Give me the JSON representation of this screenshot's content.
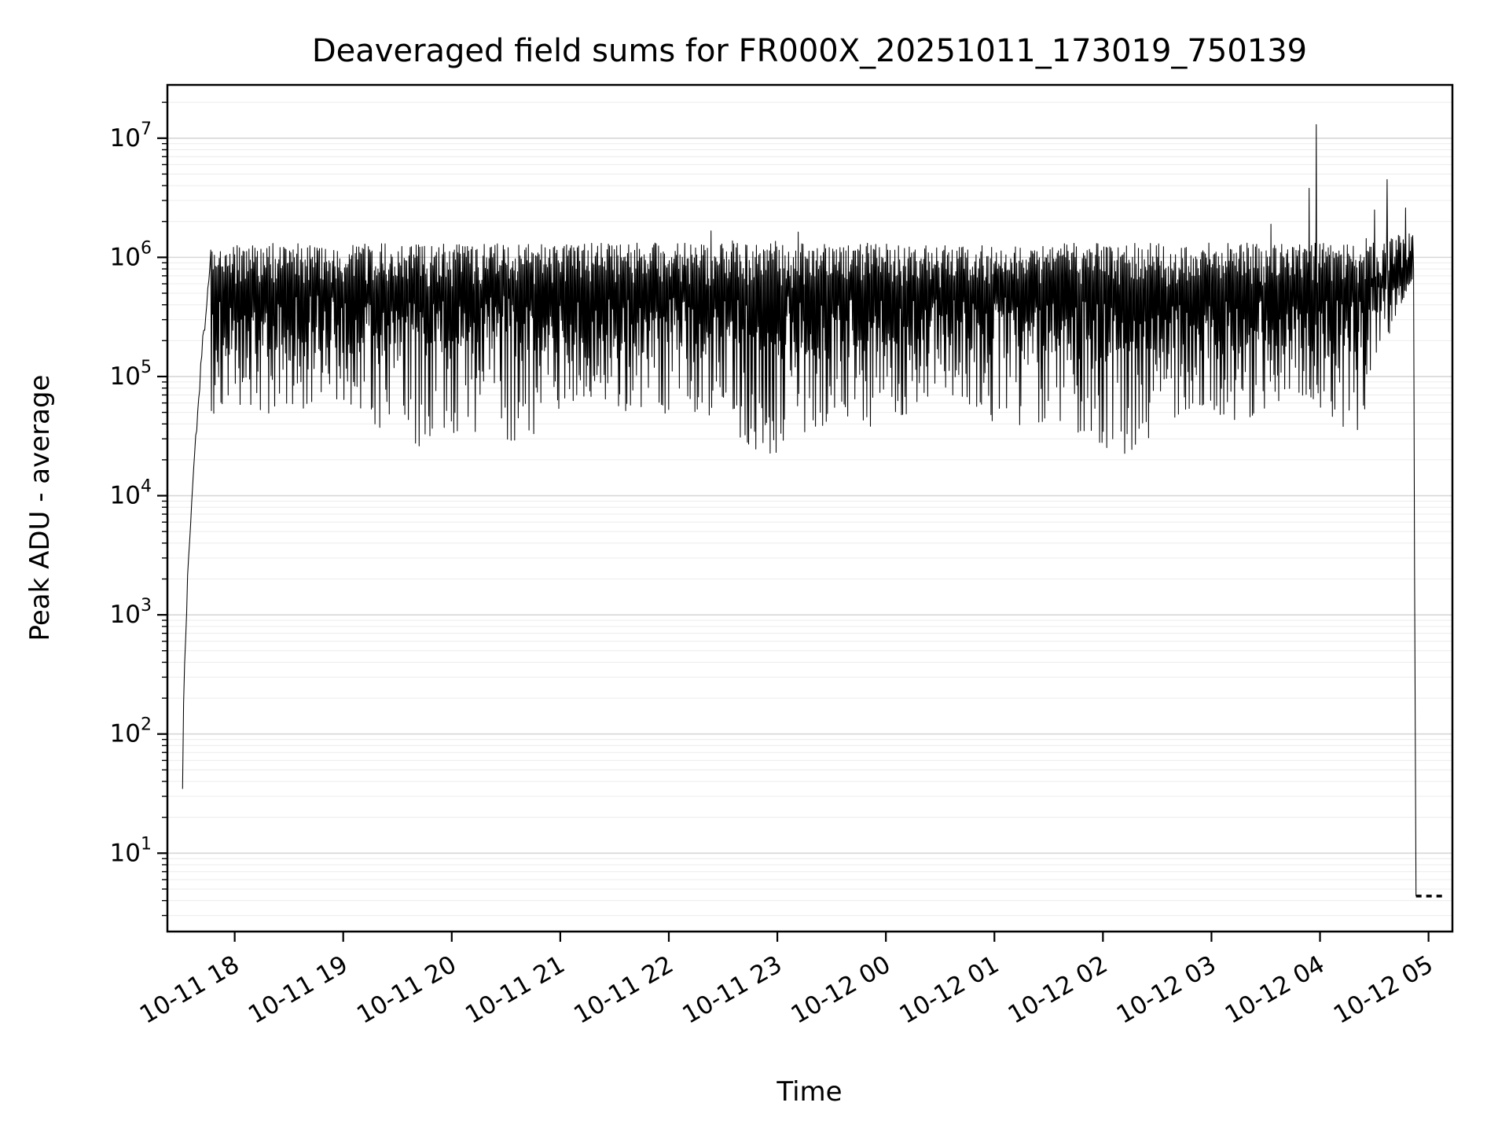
{
  "chart": {
    "title": "Deaveraged field sums for FR000X_20251011_173019_750139",
    "xlabel": "Time",
    "ylabel": "Peak ADU - average"
  },
  "style": {
    "line_color": "#000000",
    "grid_major": "#d7d7d7",
    "grid_minor": "#ececec",
    "spine_color": "#000000",
    "background": "#ffffff"
  },
  "chart_data": {
    "type": "line",
    "title": "Deaveraged field sums for FR000X_20251011_173019_750139",
    "xlabel": "Time",
    "ylabel": "Peak ADU - average",
    "y_scale": "log",
    "ylim": [
      2.2,
      28000000.0
    ],
    "x_unit": "hours since 2025-10-11 00:00",
    "xlim": [
      17.38,
      29.22
    ],
    "grid": {
      "horizontal_major": true,
      "horizontal_minor": true,
      "vertical": false
    },
    "legend": "none",
    "y_ticks_exponents": [
      1,
      2,
      3,
      4,
      5,
      6,
      7
    ],
    "x_ticks": [
      {
        "t": 18,
        "label": "10-11 18"
      },
      {
        "t": 19,
        "label": "10-11 19"
      },
      {
        "t": 20,
        "label": "10-11 20"
      },
      {
        "t": 21,
        "label": "10-11 21"
      },
      {
        "t": 22,
        "label": "10-11 22"
      },
      {
        "t": 23,
        "label": "10-11 23"
      },
      {
        "t": 24,
        "label": "10-12 00"
      },
      {
        "t": 25,
        "label": "10-12 01"
      },
      {
        "t": 26,
        "label": "10-12 02"
      },
      {
        "t": 27,
        "label": "10-12 03"
      },
      {
        "t": 28,
        "label": "10-12 04"
      },
      {
        "t": 29,
        "label": "10-12 05"
      }
    ],
    "series": [
      {
        "name": "peak_adu_minus_average",
        "color": "#000000",
        "description": "Dense noisy band oscillating between ~4e4 and ~2e6 ADU from 10-11 17:45 to 10-12 04:50; ramps up from ~35 ADU at 10-11 17:31; drops to a flat dashed tail at ~4.4 ADU after 10-12 04:52.",
        "start_point": {
          "t": 17.52,
          "value": 35
        },
        "band_value_range": [
          40000.0,
          2000000.0
        ],
        "spikes": [
          {
            "t": 27.9,
            "value": 3800000.0
          },
          {
            "t": 27.965,
            "value": 13000000.0
          },
          {
            "t": 28.5,
            "value": 2500000.0
          },
          {
            "t": 28.62,
            "value": 4500000.0
          },
          {
            "t": 28.79,
            "value": 2600000.0
          }
        ],
        "tail": {
          "from_t": 28.885,
          "to_t": 29.15,
          "value": 4.4,
          "dashed": true
        }
      }
    ],
    "synthesis": {
      "seed": 1337,
      "dt_hours": 0.0055,
      "ramp": {
        "t0": 17.52,
        "t1": 17.78,
        "log_from": 1.54,
        "log_to": 6.02
      },
      "band": {
        "t0": 17.78,
        "t1": 28.42,
        "low_log_min": 4.6,
        "low_log_max": 5.68,
        "high_log_min": 5.74,
        "high_log_max": 6.12,
        "spike_prob": 0.006,
        "spike_log_max": 6.42
      },
      "right": {
        "t0": 28.42,
        "t1": 28.86,
        "low_log_start": 4.85,
        "low_log_end": 5.85,
        "high_log_min": 5.8,
        "high_log_max": 6.16
      },
      "drop": {
        "t0": 28.862,
        "t1": 28.885,
        "log_to": 0.64
      },
      "tail": {
        "t0": 28.885,
        "t1": 29.15,
        "log": 0.64
      }
    }
  }
}
